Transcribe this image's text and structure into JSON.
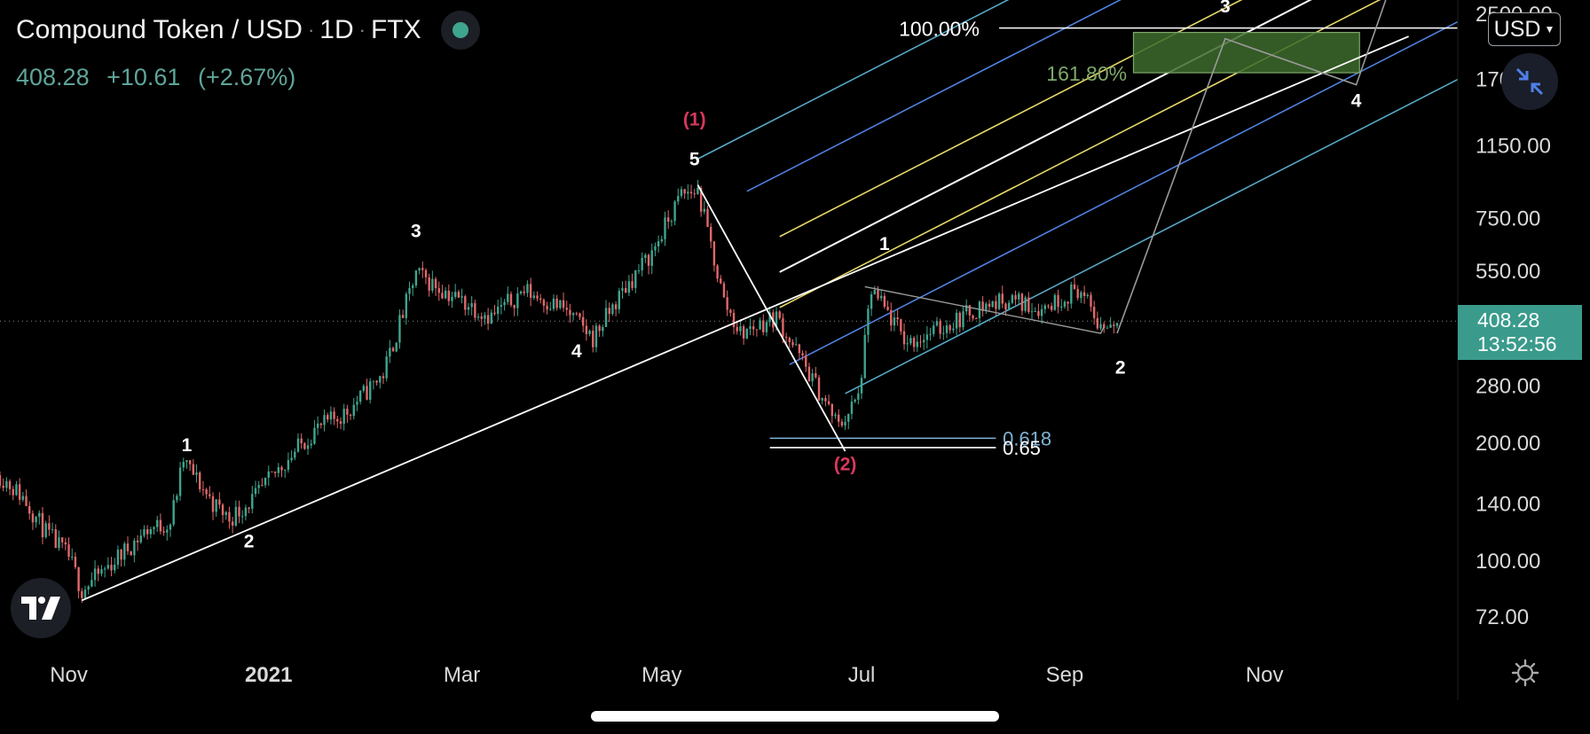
{
  "header": {
    "symbol": "Compound Token / USD",
    "interval": "1D",
    "exchange": "FTX",
    "separator": "·",
    "last_price": "408.28",
    "change": "+10.61",
    "change_pct": "(+2.67%)"
  },
  "currency_button": {
    "label": "USD"
  },
  "price_tag": {
    "price": "408.28",
    "countdown": "13:52:56"
  },
  "colors": {
    "background": "#000000",
    "up_candle": "#3fa58e",
    "down_candle": "#e2686a",
    "price_tag": "#3a9b8c",
    "wave_red": "#d9385d",
    "fib_green": "#7fa86a",
    "fib_zone": "#3d6a2d",
    "fork_cyan": "#57a9c7",
    "fork_blue": "#4f82e0",
    "fork_yellow": "#e8d96a",
    "fork_white": "#ffffff"
  },
  "icons": {
    "status": "status-dot-icon",
    "collapse": "collapse-arrows-icon",
    "logo": "tradingview-logo-icon",
    "settings": "gear-icon"
  },
  "chart_data": {
    "type": "candlestick",
    "title": "Compound Token / USD · 1D · FTX",
    "y_scale": "log",
    "ylim": [
      60,
      2700
    ],
    "y_ticks": [
      "72.00",
      "100.00",
      "140.00",
      "200.00",
      "280.00",
      "408.28",
      "550.00",
      "750.00",
      "1150.00",
      "1700.00",
      "2500.00"
    ],
    "x_ticks": [
      "Nov",
      "2021",
      "Mar",
      "May",
      "Jul",
      "Sep",
      "Nov"
    ],
    "xlim": [
      "2020-10-11",
      "2021-12-30"
    ],
    "x_tick_dates": [
      "2020-11-01",
      "2021-01-01",
      "2021-03-01",
      "2021-05-01",
      "2021-07-01",
      "2021-09-01",
      "2021-11-01"
    ],
    "current_price_line": 408.28,
    "price_path_closes": [
      [
        "2020-10-11",
        165
      ],
      [
        "2020-10-18",
        145
      ],
      [
        "2020-10-25",
        118
      ],
      [
        "2020-11-01",
        102
      ],
      [
        "2020-11-05",
        84
      ],
      [
        "2020-11-15",
        100
      ],
      [
        "2020-11-25",
        120
      ],
      [
        "2020-12-02",
        125
      ],
      [
        "2020-12-06",
        180
      ],
      [
        "2020-12-15",
        140
      ],
      [
        "2020-12-20",
        128
      ],
      [
        "2020-12-28",
        145
      ],
      [
        "2021-01-05",
        175
      ],
      [
        "2021-01-15",
        215
      ],
      [
        "2021-01-25",
        240
      ],
      [
        "2021-02-05",
        300
      ],
      [
        "2021-02-15",
        540
      ],
      [
        "2021-02-25",
        480
      ],
      [
        "2021-03-10",
        420
      ],
      [
        "2021-03-20",
        490
      ],
      [
        "2021-04-01",
        440
      ],
      [
        "2021-04-10",
        370
      ],
      [
        "2021-04-20",
        500
      ],
      [
        "2021-04-28",
        610
      ],
      [
        "2021-05-07",
        860
      ],
      [
        "2021-05-12",
        880
      ],
      [
        "2021-05-20",
        460
      ],
      [
        "2021-05-25",
        380
      ],
      [
        "2021-06-05",
        420
      ],
      [
        "2021-06-15",
        300
      ],
      [
        "2021-06-24",
        220
      ],
      [
        "2021-06-30",
        260
      ],
      [
        "2021-07-04",
        490
      ],
      [
        "2021-07-15",
        360
      ],
      [
        "2021-07-25",
        390
      ],
      [
        "2021-08-05",
        440
      ],
      [
        "2021-08-15",
        465
      ],
      [
        "2021-08-25",
        440
      ],
      [
        "2021-09-05",
        495
      ],
      [
        "2021-09-12",
        395
      ],
      [
        "2021-09-17",
        408.28
      ]
    ],
    "wave_labels": [
      {
        "text": "1",
        "date": "2020-12-07",
        "price": 190,
        "color": "white"
      },
      {
        "text": "2",
        "date": "2020-12-26",
        "price": 108,
        "color": "white"
      },
      {
        "text": "3",
        "date": "2021-02-15",
        "price": 670,
        "color": "white"
      },
      {
        "text": "4",
        "date": "2021-04-05",
        "price": 330,
        "color": "white"
      },
      {
        "text": "5",
        "date": "2021-05-11",
        "price": 1020,
        "color": "white"
      },
      {
        "text": "(1)",
        "date": "2021-05-11",
        "price": 1290,
        "color": "red"
      },
      {
        "text": "(2)",
        "date": "2021-06-26",
        "price": 170,
        "color": "red"
      },
      {
        "text": "1",
        "date": "2021-07-08",
        "price": 620,
        "color": "white"
      },
      {
        "text": "2",
        "date": "2021-09-18",
        "price": 300,
        "color": "white"
      },
      {
        "text": "3",
        "date": "2021-10-20",
        "price": 2750,
        "color": "white"
      },
      {
        "text": "4",
        "date": "2021-11-29",
        "price": 1440,
        "color": "white"
      }
    ],
    "fib_retracement": [
      {
        "label": "0.618",
        "price": 205,
        "color": "#7fb3d5"
      },
      {
        "label": "0.65",
        "price": 194,
        "color": "#ffffff"
      }
    ],
    "fib_extension": [
      {
        "label": "100.00%",
        "price": 2290,
        "color": "#ffffff"
      },
      {
        "label": "161.80%",
        "price": 1760,
        "color": "#7fa86a"
      }
    ],
    "trendlines": [
      {
        "from": [
          "2020-11-05",
          79
        ],
        "to": [
          "2021-12-15",
          2180
        ],
        "color": "white"
      },
      {
        "from": [
          "2021-05-12",
          910
        ],
        "to": [
          "2021-06-26",
          190
        ],
        "color": "white"
      }
    ],
    "projection_path": [
      [
        "2021-09-17",
        380
      ],
      [
        "2021-10-20",
        2150
      ],
      [
        "2021-11-29",
        1640
      ],
      [
        "2021-12-08",
        3000
      ]
    ]
  }
}
